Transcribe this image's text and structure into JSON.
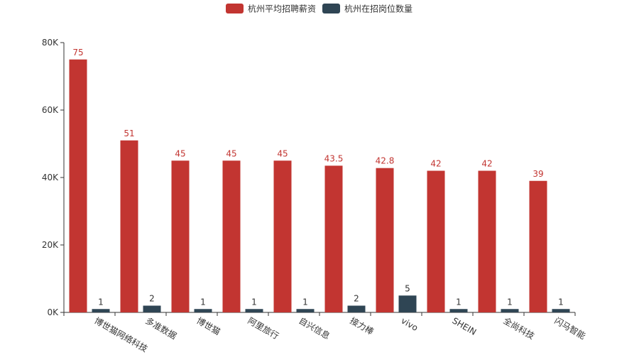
{
  "chart_data": {
    "type": "bar",
    "title": "",
    "categories": [
      "博世猫网络科技",
      "多准数据",
      "博世猫",
      "阿里旅行",
      "自兴信息",
      "接力棒",
      "vivo",
      "SHEIN",
      "全尚科技",
      "闪马智能"
    ],
    "series": [
      {
        "name": "杭州平均招聘薪资",
        "color": "#c23531",
        "values": [
          75000,
          51000,
          45000,
          45000,
          45000,
          43500,
          42800,
          42000,
          42000,
          39000
        ],
        "labels": [
          "75",
          "51",
          "45",
          "45",
          "45",
          "43.5",
          "42.8",
          "42",
          "42",
          "39"
        ]
      },
      {
        "name": "杭州在招岗位数量",
        "color": "#2f4554",
        "values": [
          1000,
          2000,
          1000,
          1000,
          1000,
          2000,
          5000,
          1000,
          1000,
          1000
        ],
        "labels": [
          "1",
          "2",
          "1",
          "1",
          "1",
          "2",
          "5",
          "1",
          "1",
          "1"
        ]
      }
    ],
    "ylim": [
      0,
      80000
    ],
    "yticks": [
      0,
      20000,
      40000,
      60000,
      80000
    ],
    "ytick_labels": [
      "0K",
      "20K",
      "40K",
      "60K",
      "80K"
    ],
    "xlabel": "",
    "ylabel": "",
    "legend_position": "top-center"
  }
}
